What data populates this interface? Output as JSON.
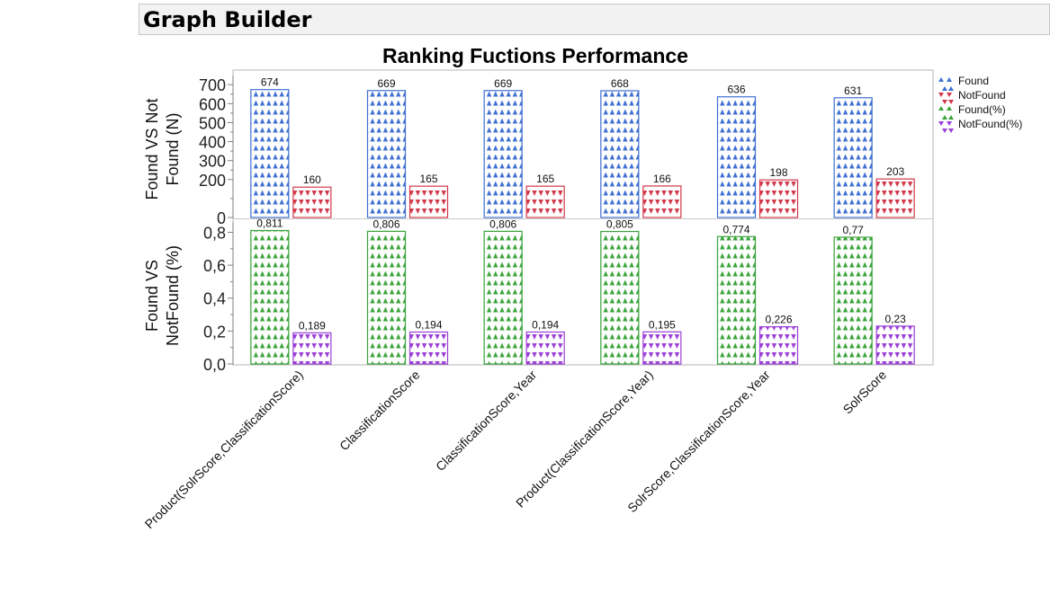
{
  "window": {
    "title": "Graph Builder"
  },
  "chart_data": {
    "type": "bar",
    "title": "Ranking Fuctions Performance",
    "categories": [
      "Product(SolrScore,ClassificationScore)",
      "ClassificationScore",
      "ClassificationScore,Year",
      "Product(ClassificationScore,Year)",
      "SolrScore,ClassificationScore,Year",
      "SolrScore"
    ],
    "panels": [
      {
        "ylabel": [
          "Found VS Not",
          "Found (N)"
        ],
        "ylim": [
          0,
          720
        ],
        "ticks": [
          {
            "v": 0,
            "label": "0"
          },
          {
            "v": 200,
            "label": "200"
          },
          {
            "v": 300,
            "label": "300"
          },
          {
            "v": 400,
            "label": "400"
          },
          {
            "v": 500,
            "label": "500"
          },
          {
            "v": 600,
            "label": "600"
          },
          {
            "v": 700,
            "label": "700"
          }
        ],
        "series": [
          {
            "name": "Found",
            "color": "#3f6fd1",
            "marker": "up",
            "values": [
              674,
              669,
              669,
              668,
              636,
              631
            ],
            "labels": [
              "674",
              "669",
              "669",
              "668",
              "636",
              "631"
            ]
          },
          {
            "name": "NotFound",
            "color": "#d2384a",
            "marker": "down",
            "values": [
              160,
              165,
              165,
              166,
              198,
              203
            ],
            "labels": [
              "160",
              "165",
              "165",
              "166",
              "198",
              "203"
            ]
          }
        ]
      },
      {
        "ylabel": [
          "Found VS",
          "NotFound (%)"
        ],
        "ylim": [
          0,
          0.83
        ],
        "ticks": [
          {
            "v": 0,
            "label": "0,0"
          },
          {
            "v": 0.2,
            "label": "0,2"
          },
          {
            "v": 0.4,
            "label": "0,4"
          },
          {
            "v": 0.6,
            "label": "0,6"
          },
          {
            "v": 0.8,
            "label": "0,8"
          }
        ],
        "series": [
          {
            "name": "Found(%)",
            "color": "#3aa33a",
            "marker": "up",
            "values": [
              0.811,
              0.806,
              0.806,
              0.805,
              0.774,
              0.77
            ],
            "labels": [
              "0,811",
              "0,806",
              "0,806",
              "0,805",
              "0,774",
              "0,77"
            ]
          },
          {
            "name": "NotFound(%)",
            "color": "#9a3fd6",
            "marker": "down",
            "values": [
              0.189,
              0.194,
              0.194,
              0.195,
              0.226,
              0.23
            ],
            "labels": [
              "0,189",
              "0,194",
              "0,194",
              "0,195",
              "0,226",
              "0,23"
            ]
          }
        ]
      }
    ],
    "legend": {
      "position": "right",
      "items": [
        {
          "name": "Found",
          "color": "#3f6fd1",
          "marker": "up"
        },
        {
          "name": "NotFound",
          "color": "#d2384a",
          "marker": "down"
        },
        {
          "name": "Found(%)",
          "color": "#3aa33a",
          "marker": "up"
        },
        {
          "name": "NotFound(%)",
          "color": "#9a3fd6",
          "marker": "down"
        }
      ]
    },
    "grid": false
  }
}
